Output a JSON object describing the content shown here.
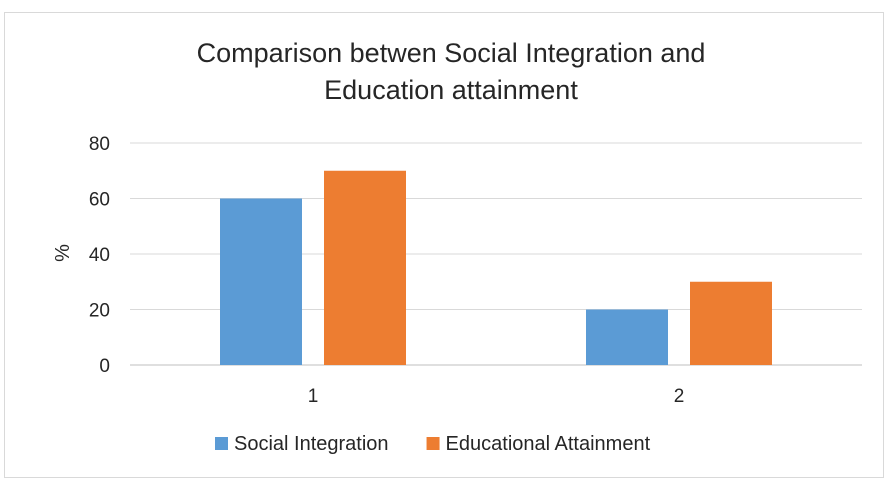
{
  "chart_data": {
    "type": "bar",
    "title_lines": [
      "Comparison betwen Social Integration and",
      "Education attainment"
    ],
    "xlabel": "",
    "ylabel": "%",
    "categories": [
      "1",
      "2"
    ],
    "series": [
      {
        "name": "Social Integration",
        "values": [
          60,
          20
        ],
        "color": "#5b9bd5"
      },
      {
        "name": "Educational Attainment",
        "values": [
          70,
          30
        ],
        "color": "#ed7d31"
      }
    ],
    "ylim": [
      0,
      80
    ],
    "yticks": [
      "0",
      "20",
      "40",
      "60",
      "80"
    ],
    "grid": true,
    "legend_position": "bottom"
  }
}
